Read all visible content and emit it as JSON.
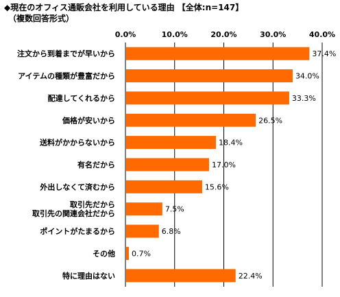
{
  "chart_data": {
    "type": "bar",
    "orientation": "horizontal",
    "title": "◆現在のオフィス通販会社を利用している理由 【全体:n=147】",
    "subtitle": "（複数回答形式）",
    "categories": [
      [
        "注文から到着までが早いから"
      ],
      [
        "アイテムの種類が豊富だから"
      ],
      [
        "配達してくれるから"
      ],
      [
        "価格が安いから"
      ],
      [
        "送料がかからないから"
      ],
      [
        "有名だから"
      ],
      [
        "外出しなくて済むから"
      ],
      [
        "取引先だから",
        "取引先の関連会社だから"
      ],
      [
        "ポイントがたまるから"
      ],
      [
        "その他"
      ],
      [
        "特に理由はない"
      ]
    ],
    "values": [
      37.4,
      34.0,
      33.3,
      26.5,
      18.4,
      17.0,
      15.6,
      7.5,
      6.8,
      0.7,
      22.4
    ],
    "value_labels": [
      "37.4%",
      "34.0%",
      "33.3%",
      "26.5%",
      "18.4%",
      "17.0%",
      "15.6%",
      "7.5%",
      "6.8%",
      "0.7%",
      "22.4%"
    ],
    "xlim": [
      0,
      40
    ],
    "ticks": [
      0,
      10,
      20,
      30,
      40
    ],
    "tick_labels": [
      "0.0%",
      "10.0%",
      "20.0%",
      "30.0%",
      "40.0%"
    ],
    "grid": true,
    "bar_color": "#ff6a00"
  }
}
